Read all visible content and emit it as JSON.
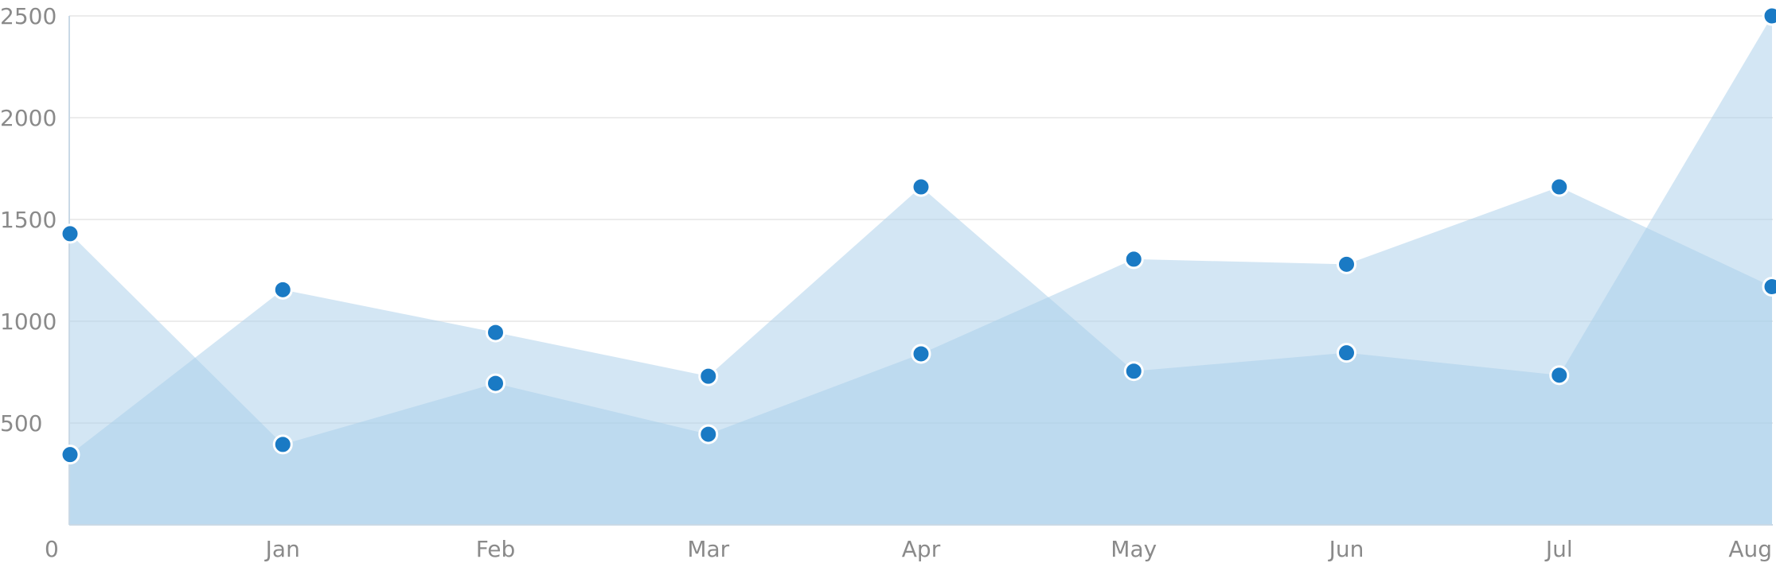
{
  "chart_data": {
    "type": "area",
    "title": "",
    "xlabel": "",
    "ylabel": "",
    "categories": [
      "0",
      "Jan",
      "Feb",
      "Mar",
      "Apr",
      "May",
      "Jun",
      "Jul",
      "Aug"
    ],
    "ylim": [
      0,
      2500
    ],
    "yticks": [
      "500",
      "1000",
      "1500",
      "2000",
      "2500"
    ],
    "grid": true,
    "legend": "none",
    "series": [
      {
        "values": [
          1430,
          395,
          695,
          445,
          840,
          1305,
          1280,
          1660,
          1170
        ]
      },
      {
        "values": [
          345,
          1155,
          945,
          730,
          1660,
          755,
          845,
          735,
          2500
        ]
      }
    ],
    "colors": {
      "area_fill": "#a8cde9",
      "marker_fill": "#1a7ac4",
      "marker_stroke": "#ffffff",
      "grid": "#e6e6e6",
      "axis": "#c9d9e6",
      "tick_text": "#8a8a8a"
    }
  }
}
